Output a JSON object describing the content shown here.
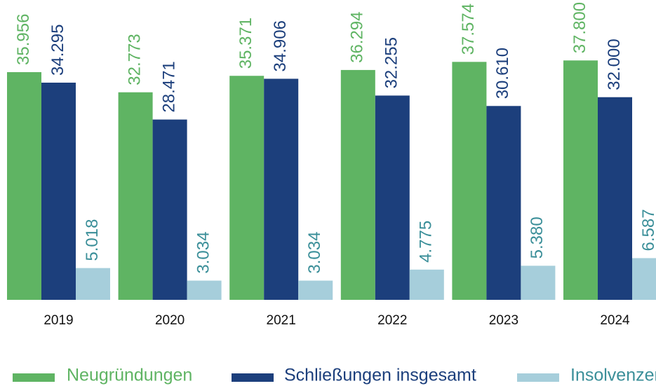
{
  "chart_data": {
    "type": "bar",
    "categories": [
      "2019",
      "2020",
      "2021",
      "2022",
      "2023",
      "2024"
    ],
    "series": [
      {
        "name": "Neugründungen",
        "color": "#5fb463",
        "values": [
          35956,
          32773,
          35371,
          36294,
          37574,
          37800
        ],
        "value_labels": [
          "35.956",
          "32.773",
          "35.371",
          "36.294",
          "37.574",
          "37.800"
        ]
      },
      {
        "name": "Schließungen insgesamt",
        "color": "#1c3f7c",
        "values": [
          34295,
          28471,
          34906,
          32255,
          30610,
          32000
        ],
        "value_labels": [
          "34.295",
          "28.471",
          "34.906",
          "32.255",
          "30.610",
          "32.000"
        ]
      },
      {
        "name": "Insolvenzen",
        "color": "#a6cedb",
        "values": [
          5018,
          3034,
          3034,
          4775,
          5380,
          6587
        ],
        "value_labels": [
          "5.018",
          "3.034",
          "3.034",
          "4.775",
          "5.380",
          "6.587"
        ]
      }
    ]
  }
}
